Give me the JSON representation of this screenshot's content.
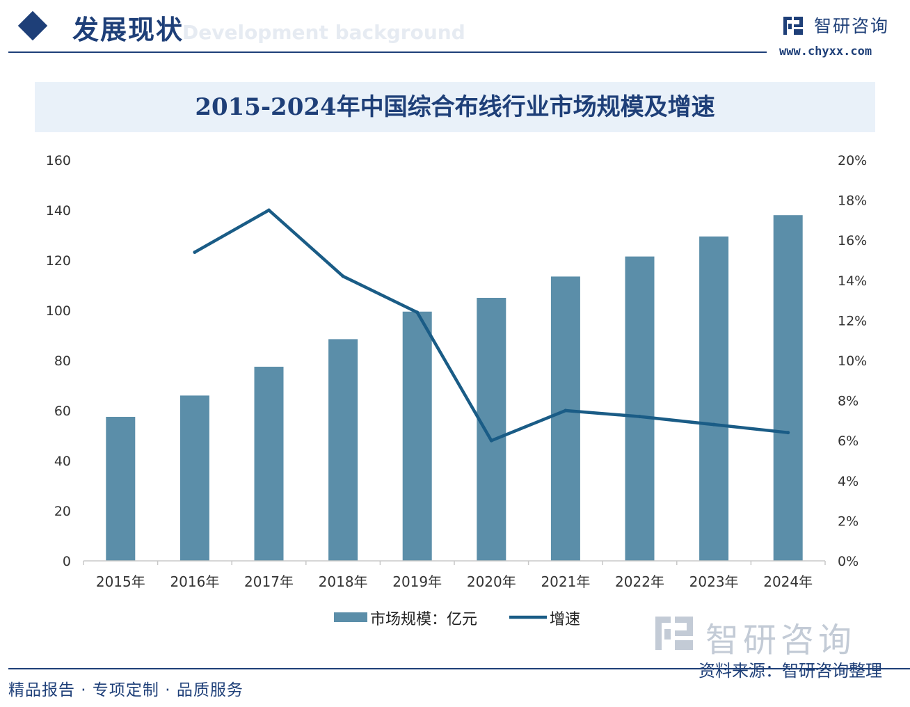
{
  "header": {
    "title": "发展现状",
    "subtitle": "Development background",
    "brand_name": "智研咨询",
    "brand_url": "www.chyxx.com"
  },
  "colors": {
    "brand": "#1e3f78",
    "bar": "#5b8ea9",
    "line": "#1a5c86",
    "title_band": "#e9f1f9"
  },
  "chart_data": {
    "type": "bar",
    "title": "2015-2024年中国综合布线行业市场规模及增速",
    "categories": [
      "2015年",
      "2016年",
      "2017年",
      "2018年",
      "2019年",
      "2020年",
      "2021年",
      "2022年",
      "2023年",
      "2024年"
    ],
    "series": [
      {
        "name": "市场规模：亿元",
        "type": "bar",
        "axis": "left",
        "values": [
          57.5,
          66,
          77.5,
          88.5,
          99.5,
          105,
          113.5,
          121.5,
          129.5,
          138
        ]
      },
      {
        "name": "增速",
        "type": "line",
        "axis": "right",
        "values": [
          null,
          15.4,
          17.5,
          14.2,
          12.4,
          6.0,
          7.5,
          7.2,
          6.8,
          6.4
        ]
      }
    ],
    "y_left": {
      "min": 0,
      "max": 160,
      "ticks": [
        0,
        20,
        40,
        60,
        80,
        100,
        120,
        140,
        160
      ]
    },
    "y_right": {
      "min": 0,
      "max": 20,
      "ticks": [
        "0%",
        "2%",
        "4%",
        "6%",
        "8%",
        "10%",
        "12%",
        "14%",
        "16%",
        "18%",
        "20%"
      ]
    },
    "legend_position": "bottom",
    "grid": false
  },
  "source": {
    "brand": "智研咨询",
    "text": "资料来源：智研咨询整理"
  },
  "footer": {
    "text": "精品报告 · 专项定制 · 品质服务"
  }
}
